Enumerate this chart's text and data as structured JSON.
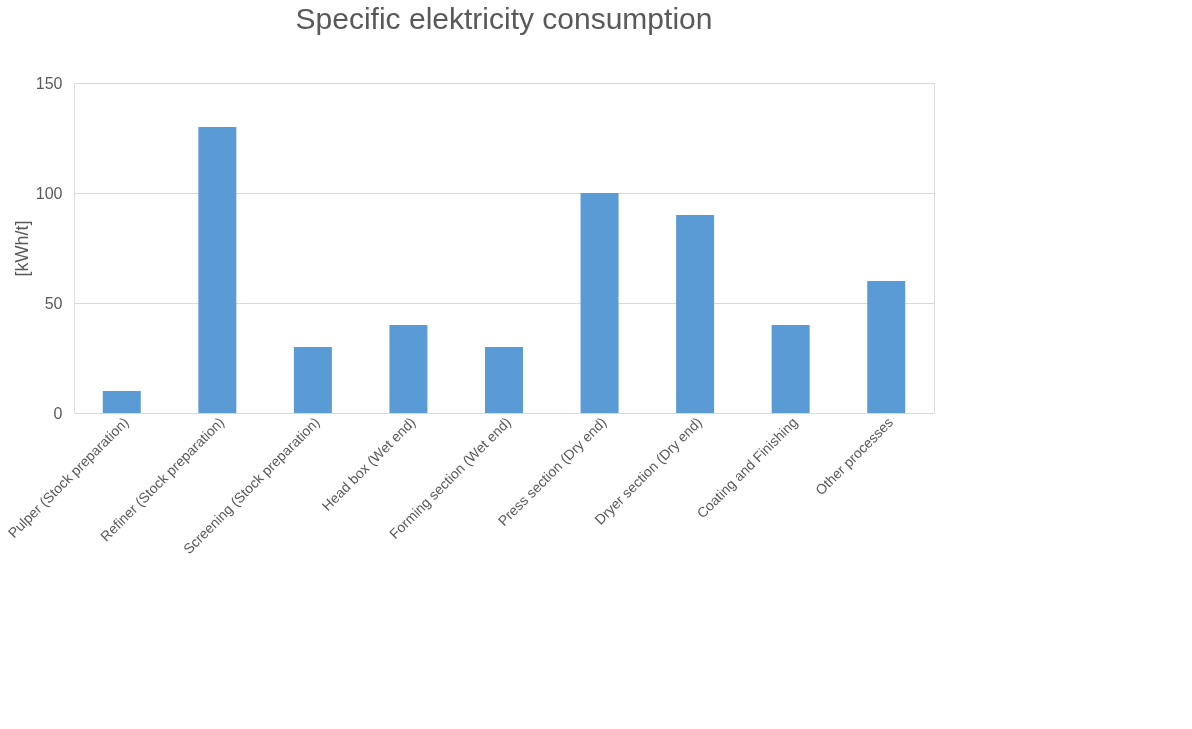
{
  "chart_data": {
    "type": "bar",
    "title": "Specific elektricity consumption",
    "ylabel": "[kWh/t]",
    "categories": [
      "Pulper (Stock preparation)",
      "Refiner (Stock preparation)",
      "Screening (Stock preparation)",
      "Head box (Wet end)",
      "Forming section (Wet end)",
      "Press section (Dry end)",
      "Dryer section (Dry end)",
      "Coating and Finishing",
      "Other processes"
    ],
    "values": [
      10,
      130,
      30,
      40,
      30,
      100,
      90,
      40,
      60
    ],
    "color": "#5b9bd5",
    "ylim": [
      0,
      150
    ],
    "yticks": [
      0,
      50,
      100,
      150
    ],
    "grid": "y"
  }
}
